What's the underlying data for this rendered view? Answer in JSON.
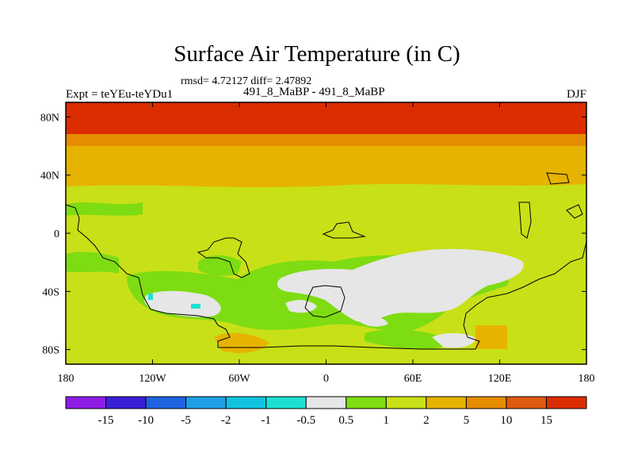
{
  "title": "Surface Air Temperature (in C)",
  "stats": "rmsd= 4.72127 diff= 2.47892",
  "experiment": "Expt = teYEu-teYDu1",
  "period": "491_8_MaBP - 491_8_MaBP",
  "season": "DJF",
  "map": {
    "lon_labels": [
      "180",
      "120W",
      "60W",
      "0",
      "60E",
      "120E",
      "180"
    ],
    "lat_labels": [
      "80N",
      "40N",
      "0",
      "40S",
      "80S"
    ],
    "lon_range": [
      -180,
      180
    ],
    "lat_range": [
      -90,
      90
    ]
  },
  "colorbar": {
    "labels": [
      "-15",
      "-10",
      "-5",
      "-2",
      "-1",
      "-0.5",
      "0.5",
      "1",
      "2",
      "5",
      "10",
      "15"
    ],
    "colors": [
      "#8f1ce6",
      "#3a1fd8",
      "#1f63e0",
      "#1fa0e6",
      "#10c4e0",
      "#1ee0d2",
      "#e6e6e6",
      "#7edc12",
      "#c8e017",
      "#e6b400",
      "#e68c00",
      "#e05a10",
      "#dc2d00"
    ]
  },
  "colors": {
    "warm_red": "#dc2d00",
    "orange": "#e05a10",
    "dark_orange": "#e68c00",
    "gold": "#e6b400",
    "yellow_green": "#c8e017",
    "green": "#7edc12",
    "near_zero": "#e6e6e6",
    "cyan": "#1ee0d2"
  }
}
